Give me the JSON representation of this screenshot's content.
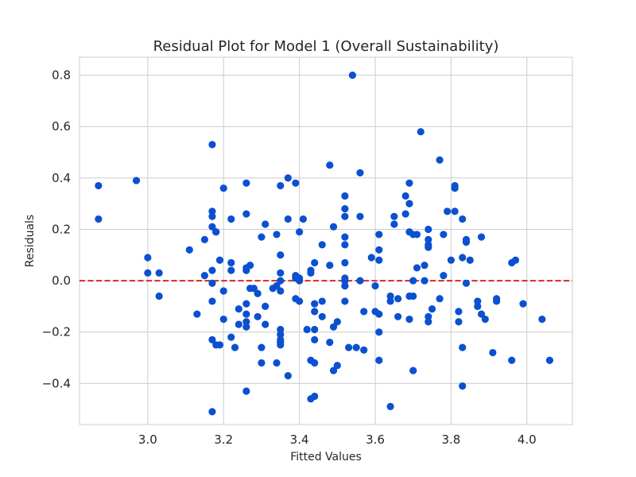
{
  "chart_data": {
    "type": "scatter",
    "title": "Residual Plot for Model 1 (Overall Sustainability)",
    "xlabel": "Fitted Values",
    "ylabel": "Residuals",
    "xlim": [
      2.82,
      4.12
    ],
    "ylim": [
      -0.56,
      0.87
    ],
    "xticks": [
      3.0,
      3.2,
      3.4,
      3.6,
      3.8,
      4.0
    ],
    "xtick_labels": [
      "3.0",
      "3.2",
      "3.4",
      "3.6",
      "3.8",
      "4.0"
    ],
    "yticks": [
      -0.4,
      -0.2,
      0.0,
      0.2,
      0.4,
      0.6,
      0.8
    ],
    "ytick_labels": [
      "−0.4",
      "−0.2",
      "0.0",
      "0.2",
      "0.4",
      "0.6",
      "0.8"
    ],
    "grid": true,
    "reference_line": {
      "y": 0.0,
      "style": "dashed",
      "color": "#d62728"
    },
    "point_color": "#0b50d0",
    "points": [
      [
        2.87,
        0.37
      ],
      [
        2.87,
        0.24
      ],
      [
        2.97,
        0.39
      ],
      [
        3.0,
        0.09
      ],
      [
        3.0,
        0.03
      ],
      [
        3.03,
        0.03
      ],
      [
        3.03,
        -0.06
      ],
      [
        3.11,
        0.12
      ],
      [
        3.13,
        -0.13
      ],
      [
        3.15,
        0.16
      ],
      [
        3.15,
        0.02
      ],
      [
        3.17,
        0.53
      ],
      [
        3.17,
        0.27
      ],
      [
        3.17,
        0.25
      ],
      [
        3.17,
        0.21
      ],
      [
        3.18,
        0.19
      ],
      [
        3.18,
        0.19
      ],
      [
        3.17,
        0.04
      ],
      [
        3.17,
        -0.01
      ],
      [
        3.17,
        -0.08
      ],
      [
        3.17,
        -0.23
      ],
      [
        3.18,
        -0.25
      ],
      [
        3.17,
        -0.51
      ],
      [
        3.19,
        0.08
      ],
      [
        3.19,
        -0.25
      ],
      [
        3.2,
        0.36
      ],
      [
        3.2,
        -0.04
      ],
      [
        3.2,
        -0.15
      ],
      [
        3.22,
        0.24
      ],
      [
        3.22,
        0.07
      ],
      [
        3.22,
        0.04
      ],
      [
        3.22,
        -0.22
      ],
      [
        3.23,
        -0.26
      ],
      [
        3.24,
        -0.11
      ],
      [
        3.24,
        -0.17
      ],
      [
        3.26,
        0.38
      ],
      [
        3.26,
        0.26
      ],
      [
        3.26,
        0.05
      ],
      [
        3.26,
        0.04
      ],
      [
        3.27,
        0.06
      ],
      [
        3.27,
        -0.03
      ],
      [
        3.26,
        -0.09
      ],
      [
        3.26,
        -0.13
      ],
      [
        3.26,
        -0.16
      ],
      [
        3.26,
        -0.18
      ],
      [
        3.26,
        -0.43
      ],
      [
        3.28,
        -0.03
      ],
      [
        3.29,
        -0.14
      ],
      [
        3.29,
        -0.05
      ],
      [
        3.3,
        0.17
      ],
      [
        3.31,
        0.22
      ],
      [
        3.31,
        -0.1
      ],
      [
        3.31,
        -0.17
      ],
      [
        3.3,
        -0.26
      ],
      [
        3.3,
        -0.32
      ],
      [
        3.33,
        -0.03
      ],
      [
        3.34,
        0.18
      ],
      [
        3.34,
        -0.02
      ],
      [
        3.34,
        -0.32
      ],
      [
        3.35,
        0.37
      ],
      [
        3.35,
        0.1
      ],
      [
        3.35,
        0.03
      ],
      [
        3.35,
        0.0
      ],
      [
        3.35,
        -0.04
      ],
      [
        3.35,
        -0.19
      ],
      [
        3.35,
        -0.21
      ],
      [
        3.35,
        -0.23
      ],
      [
        3.35,
        -0.24
      ],
      [
        3.35,
        -0.25
      ],
      [
        3.37,
        0.4
      ],
      [
        3.37,
        0.24
      ],
      [
        3.37,
        -0.37
      ],
      [
        3.39,
        0.38
      ],
      [
        3.39,
        0.02
      ],
      [
        3.39,
        0.01
      ],
      [
        3.4,
        0.19
      ],
      [
        3.4,
        0.01
      ],
      [
        3.4,
        0.0
      ],
      [
        3.39,
        -0.07
      ],
      [
        3.4,
        -0.08
      ],
      [
        3.41,
        0.24
      ],
      [
        3.42,
        -0.19
      ],
      [
        3.43,
        0.04
      ],
      [
        3.43,
        0.03
      ],
      [
        3.43,
        -0.31
      ],
      [
        3.43,
        -0.46
      ],
      [
        3.44,
        0.07
      ],
      [
        3.44,
        -0.09
      ],
      [
        3.44,
        -0.12
      ],
      [
        3.44,
        -0.19
      ],
      [
        3.44,
        -0.23
      ],
      [
        3.44,
        -0.32
      ],
      [
        3.44,
        -0.45
      ],
      [
        3.46,
        0.14
      ],
      [
        3.46,
        -0.08
      ],
      [
        3.46,
        -0.14
      ],
      [
        3.48,
        0.45
      ],
      [
        3.48,
        0.06
      ],
      [
        3.48,
        -0.24
      ],
      [
        3.49,
        0.21
      ],
      [
        3.49,
        -0.18
      ],
      [
        3.49,
        -0.35
      ],
      [
        3.5,
        -0.33
      ],
      [
        3.5,
        -0.16
      ],
      [
        3.52,
        0.33
      ],
      [
        3.52,
        0.28
      ],
      [
        3.52,
        0.25
      ],
      [
        3.52,
        0.17
      ],
      [
        3.52,
        0.14
      ],
      [
        3.52,
        0.07
      ],
      [
        3.52,
        0.01
      ],
      [
        3.52,
        0.0
      ],
      [
        3.52,
        -0.02
      ],
      [
        3.52,
        -0.02
      ],
      [
        3.52,
        -0.08
      ],
      [
        3.53,
        -0.26
      ],
      [
        3.54,
        0.8
      ],
      [
        3.55,
        -0.26
      ],
      [
        3.56,
        0.42
      ],
      [
        3.56,
        0.25
      ],
      [
        3.56,
        0.0
      ],
      [
        3.57,
        -0.12
      ],
      [
        3.57,
        -0.27
      ],
      [
        3.59,
        0.09
      ],
      [
        3.6,
        -0.02
      ],
      [
        3.6,
        -0.12
      ],
      [
        3.61,
        0.18
      ],
      [
        3.61,
        0.12
      ],
      [
        3.61,
        0.08
      ],
      [
        3.61,
        -0.13
      ],
      [
        3.61,
        -0.2
      ],
      [
        3.61,
        -0.31
      ],
      [
        3.64,
        -0.06
      ],
      [
        3.64,
        -0.08
      ],
      [
        3.64,
        -0.49
      ],
      [
        3.65,
        0.25
      ],
      [
        3.65,
        0.22
      ],
      [
        3.66,
        -0.14
      ],
      [
        3.66,
        -0.07
      ],
      [
        3.68,
        0.33
      ],
      [
        3.68,
        0.26
      ],
      [
        3.69,
        0.3
      ],
      [
        3.69,
        0.38
      ],
      [
        3.69,
        0.19
      ],
      [
        3.69,
        -0.06
      ],
      [
        3.69,
        -0.15
      ],
      [
        3.7,
        0.18
      ],
      [
        3.7,
        0.0
      ],
      [
        3.7,
        -0.06
      ],
      [
        3.7,
        -0.35
      ],
      [
        3.71,
        0.18
      ],
      [
        3.71,
        0.05
      ],
      [
        3.72,
        0.58
      ],
      [
        3.73,
        0.06
      ],
      [
        3.73,
        0.0
      ],
      [
        3.74,
        0.2
      ],
      [
        3.74,
        0.16
      ],
      [
        3.74,
        0.14
      ],
      [
        3.74,
        0.13
      ],
      [
        3.74,
        -0.14
      ],
      [
        3.74,
        -0.16
      ],
      [
        3.75,
        -0.11
      ],
      [
        3.77,
        0.47
      ],
      [
        3.77,
        -0.07
      ],
      [
        3.78,
        0.02
      ],
      [
        3.78,
        0.18
      ],
      [
        3.79,
        0.27
      ],
      [
        3.8,
        0.08
      ],
      [
        3.81,
        0.37
      ],
      [
        3.81,
        0.27
      ],
      [
        3.81,
        0.36
      ],
      [
        3.82,
        -0.12
      ],
      [
        3.82,
        -0.16
      ],
      [
        3.83,
        0.24
      ],
      [
        3.83,
        0.09
      ],
      [
        3.83,
        -0.26
      ],
      [
        3.83,
        -0.41
      ],
      [
        3.84,
        0.15
      ],
      [
        3.84,
        0.16
      ],
      [
        3.84,
        -0.01
      ],
      [
        3.85,
        0.08
      ],
      [
        3.87,
        -0.08
      ],
      [
        3.87,
        -0.1
      ],
      [
        3.88,
        -0.13
      ],
      [
        3.88,
        0.17
      ],
      [
        3.89,
        -0.15
      ],
      [
        3.91,
        -0.28
      ],
      [
        3.92,
        -0.07
      ],
      [
        3.92,
        -0.08
      ],
      [
        3.96,
        0.07
      ],
      [
        3.96,
        -0.31
      ],
      [
        3.97,
        0.08
      ],
      [
        3.99,
        -0.09
      ],
      [
        4.04,
        -0.15
      ],
      [
        4.06,
        -0.31
      ]
    ]
  }
}
